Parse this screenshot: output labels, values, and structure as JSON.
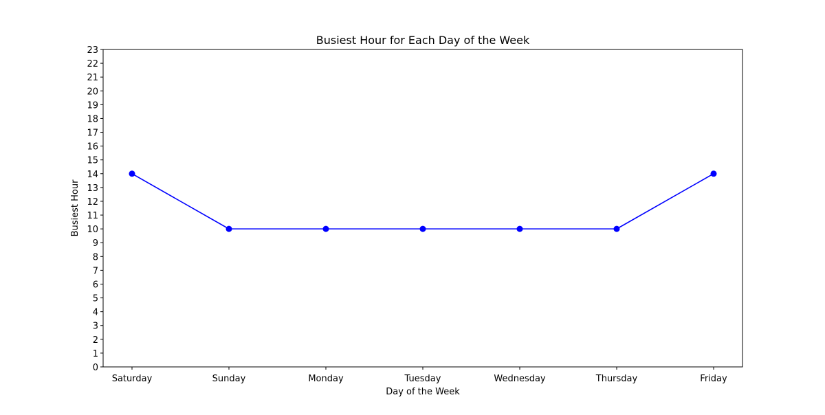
{
  "chart_data": {
    "type": "line",
    "title": "Busiest Hour for Each Day of the Week",
    "xlabel": "Day of the Week",
    "ylabel": "Busiest Hour",
    "categories": [
      "Saturday",
      "Sunday",
      "Monday",
      "Tuesday",
      "Wednesday",
      "Thursday",
      "Friday"
    ],
    "series": [
      {
        "values": [
          14,
          10,
          10,
          10,
          10,
          10,
          14
        ],
        "color": "#0000ff",
        "marker": "circle"
      }
    ],
    "ylim": [
      0,
      23
    ],
    "yticks": [
      0,
      1,
      2,
      3,
      4,
      5,
      6,
      7,
      8,
      9,
      10,
      11,
      12,
      13,
      14,
      15,
      16,
      17,
      18,
      19,
      20,
      21,
      22,
      23
    ],
    "grid": false,
    "legend": "none"
  }
}
